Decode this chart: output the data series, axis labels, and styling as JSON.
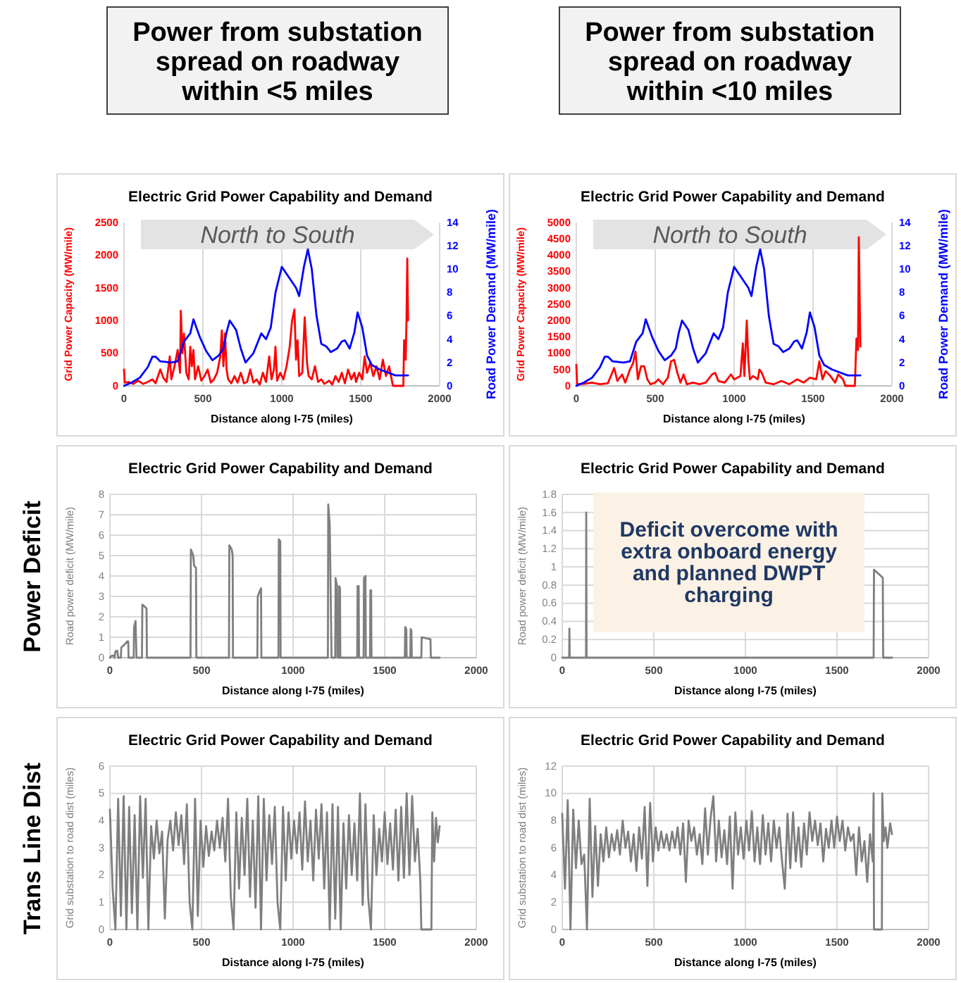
{
  "chart_data": [
    {
      "type": "line",
      "title": "Electric Grid Power Capability and Demand",
      "xlabel": "Distance along I-75 (miles)",
      "ylabel": "Grid Power Capacity (MW/mile)",
      "y2label": "Road Power Demand (MW/mile)",
      "xlim": [
        0,
        2000
      ],
      "xticks": [
        0,
        500,
        1000,
        1500,
        2000
      ],
      "ylim": [
        0,
        2500
      ],
      "yticks": [
        0,
        500,
        1000,
        1500,
        2000,
        2500
      ],
      "y2lim": [
        0,
        14
      ],
      "y2ticks": [
        0,
        2,
        4,
        6,
        8,
        10,
        12,
        14
      ],
      "grid": "x",
      "annotations": [
        "Power from substation spread on roadway within <5 miles",
        "North to South"
      ],
      "series": [
        {
          "color": "#ff0000",
          "x": [
            0,
            5,
            30,
            60,
            90,
            120,
            150,
            180,
            200,
            230,
            250,
            270,
            290,
            300,
            320,
            340,
            355,
            360,
            370,
            380,
            395,
            410,
            420,
            430,
            440,
            450,
            470,
            490,
            510,
            530,
            550,
            570,
            590,
            610,
            620,
            630,
            640,
            650,
            660,
            680,
            700,
            720,
            740,
            760,
            780,
            800,
            820,
            840,
            860,
            880,
            900,
            920,
            935,
            950,
            960,
            970,
            990,
            1010,
            1030,
            1050,
            1065,
            1080,
            1090,
            1100,
            1110,
            1130,
            1145,
            1160,
            1170,
            1190,
            1210,
            1230,
            1250,
            1270,
            1300,
            1320,
            1340,
            1360,
            1380,
            1400,
            1420,
            1440,
            1460,
            1470,
            1490,
            1510,
            1525,
            1540,
            1560,
            1580,
            1600,
            1620,
            1640,
            1660,
            1680,
            1700,
            1705,
            1770,
            1775,
            1785,
            1790,
            1795,
            1800
          ],
          "values": [
            250,
            50,
            60,
            30,
            80,
            30,
            60,
            100,
            40,
            250,
            120,
            60,
            450,
            100,
            300,
            550,
            200,
            1150,
            500,
            800,
            200,
            100,
            600,
            300,
            550,
            100,
            300,
            80,
            150,
            250,
            50,
            100,
            200,
            450,
            850,
            300,
            800,
            250,
            100,
            40,
            150,
            50,
            200,
            40,
            60,
            250,
            50,
            100,
            20,
            200,
            60,
            450,
            100,
            250,
            600,
            80,
            200,
            100,
            300,
            600,
            1000,
            1170,
            400,
            700,
            150,
            200,
            1050,
            350,
            150,
            100,
            300,
            60,
            100,
            30,
            80,
            20,
            150,
            60,
            200,
            40,
            250,
            100,
            200,
            60,
            200,
            100,
            450,
            200,
            350,
            150,
            300,
            100,
            400,
            150,
            300,
            50,
            0,
            0,
            700,
            400,
            1000,
            1950,
            1000
          ]
        },
        {
          "color": "#0000ff",
          "axis": "y2",
          "x": [
            0,
            50,
            100,
            150,
            180,
            200,
            230,
            300,
            340,
            380,
            420,
            440,
            480,
            520,
            560,
            600,
            630,
            650,
            670,
            710,
            740,
            770,
            820,
            870,
            900,
            930,
            960,
            1000,
            1050,
            1090,
            1110,
            1140,
            1165,
            1190,
            1220,
            1250,
            1280,
            1310,
            1350,
            1380,
            1400,
            1430,
            1460,
            1480,
            1510,
            1540,
            1570,
            1620,
            1680,
            1720,
            1800
          ],
          "values": [
            0,
            0.3,
            0.7,
            1.6,
            2.5,
            2.5,
            2.1,
            2.0,
            2.1,
            3.8,
            4.5,
            5.7,
            4.2,
            3.0,
            2.2,
            2.6,
            3.2,
            4.6,
            5.6,
            4.8,
            3.2,
            2.0,
            2.8,
            4.5,
            4.0,
            5.0,
            8.0,
            10.2,
            9.2,
            8.4,
            7.7,
            10.2,
            11.7,
            10.0,
            6.0,
            3.6,
            3.4,
            2.9,
            3.2,
            3.8,
            3.9,
            3.2,
            4.6,
            6.3,
            5.0,
            2.6,
            1.8,
            1.4,
            1.1,
            0.9,
            0.9
          ]
        }
      ]
    },
    {
      "type": "line",
      "title": "Electric Grid Power Capability and Demand",
      "xlabel": "Distance along I-75 (miles)",
      "ylabel": "Grid Power Capacity (MW/mile)",
      "y2label": "Road Power Demand (MW/mile)",
      "xlim": [
        0,
        2000
      ],
      "xticks": [
        0,
        500,
        1000,
        1500,
        2000
      ],
      "ylim": [
        0,
        5000
      ],
      "yticks": [
        0,
        500,
        1000,
        1500,
        2000,
        2500,
        3000,
        3500,
        4000,
        4500,
        5000
      ],
      "y2lim": [
        0,
        14
      ],
      "y2ticks": [
        0,
        2,
        4,
        6,
        8,
        10,
        12,
        14
      ],
      "grid": "x",
      "annotations": [
        "Power from substation spread on roadway within <10 miles",
        "North to South"
      ],
      "series": [
        {
          "color": "#ff0000",
          "x": [
            0,
            5,
            50,
            100,
            150,
            200,
            240,
            260,
            290,
            310,
            340,
            360,
            375,
            390,
            410,
            430,
            450,
            470,
            500,
            520,
            550,
            580,
            600,
            620,
            640,
            660,
            680,
            700,
            740,
            780,
            820,
            860,
            880,
            900,
            940,
            980,
            1000,
            1040,
            1055,
            1065,
            1080,
            1090,
            1100,
            1120,
            1150,
            1160,
            1175,
            1200,
            1250,
            1300,
            1350,
            1400,
            1440,
            1480,
            1520,
            1540,
            1560,
            1580,
            1610,
            1640,
            1660,
            1690,
            1705,
            1765,
            1775,
            1785,
            1790,
            1800
          ],
          "values": [
            650,
            50,
            60,
            100,
            50,
            80,
            550,
            150,
            350,
            100,
            500,
            700,
            1050,
            200,
            600,
            600,
            200,
            50,
            100,
            200,
            50,
            250,
            750,
            800,
            400,
            100,
            350,
            50,
            100,
            50,
            100,
            350,
            400,
            150,
            100,
            350,
            200,
            300,
            1300,
            300,
            2000,
            800,
            200,
            300,
            200,
            500,
            400,
            100,
            50,
            150,
            50,
            200,
            100,
            250,
            200,
            750,
            200,
            450,
            300,
            100,
            350,
            200,
            0,
            0,
            1450,
            1100,
            4550,
            1200
          ]
        },
        {
          "color": "#0000ff",
          "axis": "y2",
          "x": [
            0,
            50,
            100,
            150,
            180,
            200,
            230,
            300,
            340,
            380,
            420,
            440,
            480,
            520,
            560,
            600,
            630,
            650,
            670,
            710,
            740,
            770,
            820,
            870,
            900,
            930,
            960,
            1000,
            1050,
            1090,
            1110,
            1140,
            1165,
            1190,
            1220,
            1250,
            1280,
            1310,
            1350,
            1380,
            1400,
            1430,
            1460,
            1480,
            1510,
            1540,
            1570,
            1620,
            1680,
            1720,
            1800
          ],
          "values": [
            0,
            0.3,
            0.7,
            1.6,
            2.5,
            2.5,
            2.1,
            2.0,
            2.1,
            3.8,
            4.5,
            5.7,
            4.2,
            3.0,
            2.2,
            2.6,
            3.2,
            4.6,
            5.6,
            4.8,
            3.2,
            2.0,
            2.8,
            4.5,
            4.0,
            5.0,
            8.0,
            10.2,
            9.2,
            8.4,
            7.7,
            10.2,
            11.7,
            10.0,
            6.0,
            3.6,
            3.4,
            2.9,
            3.2,
            3.8,
            3.9,
            3.2,
            4.6,
            6.3,
            5.0,
            2.6,
            1.8,
            1.4,
            1.1,
            0.9,
            0.9
          ]
        }
      ]
    },
    {
      "type": "line",
      "title": "Electric Grid Power Capability and Demand",
      "xlabel": "Distance along I-75 (miles)",
      "ylabel": "Road power deficit (MW/mile)",
      "xlim": [
        0,
        2000
      ],
      "xticks": [
        0,
        500,
        1000,
        1500,
        2000
      ],
      "ylim": [
        0,
        8
      ],
      "yticks": [
        0,
        1,
        2,
        3,
        4,
        5,
        6,
        7,
        8
      ],
      "grid": true,
      "annotations": [
        "Power Deficit"
      ],
      "series": [
        {
          "color": "#7f7f7f",
          "x": [
            0,
            10,
            20,
            25,
            30,
            40,
            45,
            60,
            62,
            75,
            85,
            95,
            100,
            102,
            130,
            132,
            140,
            145,
            175,
            177,
            190,
            200,
            202,
            440,
            442,
            455,
            460,
            470,
            472,
            650,
            652,
            665,
            670,
            672,
            805,
            807,
            820,
            825,
            827,
            920,
            922,
            930,
            932,
            1190,
            1192,
            1200,
            1210,
            1230,
            1232,
            1240,
            1242,
            1250,
            1252,
            1256,
            1258,
            1350,
            1352,
            1358,
            1360,
            1385,
            1387,
            1395,
            1397,
            1420,
            1422,
            1426,
            1428,
            1610,
            1612,
            1618,
            1620,
            1640,
            1642,
            1646,
            1648,
            1700,
            1702,
            1750,
            1752,
            1800
          ],
          "values": [
            0,
            0.1,
            0.1,
            0,
            0.3,
            0.35,
            0,
            0,
            0.5,
            0.6,
            0.7,
            0.8,
            0.8,
            0,
            0,
            1.5,
            1.8,
            0,
            0,
            2.6,
            2.5,
            2.4,
            0,
            0,
            5.3,
            5.0,
            4.5,
            4.4,
            0,
            0,
            5.5,
            5.3,
            5.0,
            0,
            0,
            3.0,
            3.3,
            3.4,
            0,
            0,
            5.8,
            5.7,
            0,
            0,
            7.5,
            6.5,
            0,
            0,
            3.9,
            3.5,
            0,
            0,
            3.5,
            3.4,
            0,
            0,
            3.5,
            3.5,
            0,
            0,
            3.9,
            4.0,
            0,
            0,
            3.3,
            3.3,
            0,
            0,
            1.5,
            1.4,
            0,
            0,
            1.4,
            1.3,
            0,
            0,
            1.0,
            0.9,
            0,
            0
          ]
        }
      ]
    },
    {
      "type": "line",
      "title": "Electric Grid Power Capability and Demand",
      "xlabel": "Distance along I-75 (miles)",
      "ylabel": "Road power deficit (MW/mile)",
      "xlim": [
        0,
        2000
      ],
      "xticks": [
        0,
        500,
        1000,
        1500,
        2000
      ],
      "ylim": [
        0,
        1.8
      ],
      "yticks": [
        0,
        0.2,
        0.4,
        0.6,
        0.8,
        1,
        1.2,
        1.4,
        1.6,
        1.8
      ],
      "grid": true,
      "annotations": [
        "Deficit overcome with extra onboard energy and planned DWPT charging"
      ],
      "series": [
        {
          "color": "#7f7f7f",
          "x": [
            0,
            38,
            39,
            41,
            130,
            131,
            133,
            1700,
            1702,
            1740,
            1750,
            1752,
            1800
          ],
          "values": [
            0,
            0,
            0.32,
            0,
            0,
            1.6,
            0,
            0,
            0.97,
            0.9,
            0.88,
            0,
            0
          ]
        }
      ]
    },
    {
      "type": "line",
      "title": "Electric Grid Power Capability and Demand",
      "xlabel": "Distance along I-75 (miles)",
      "ylabel": "Grid substation to road dist (miles)",
      "xlim": [
        0,
        2000
      ],
      "xticks": [
        0,
        500,
        1000,
        1500,
        2000
      ],
      "ylim": [
        0,
        6
      ],
      "yticks": [
        0,
        1,
        2,
        3,
        4,
        5,
        6
      ],
      "grid": true,
      "annotations": [
        "Trans Line Dist"
      ],
      "series": [
        {
          "color": "#7f7f7f",
          "x": [
            0,
            15,
            30,
            45,
            60,
            75,
            90,
            105,
            120,
            135,
            150,
            165,
            180,
            195,
            210,
            225,
            240,
            255,
            270,
            285,
            300,
            315,
            330,
            345,
            360,
            375,
            390,
            405,
            420,
            435,
            450,
            465,
            480,
            495,
            510,
            525,
            540,
            555,
            570,
            585,
            600,
            615,
            630,
            645,
            660,
            675,
            690,
            705,
            720,
            735,
            750,
            765,
            780,
            795,
            810,
            825,
            840,
            855,
            870,
            885,
            900,
            915,
            930,
            945,
            960,
            975,
            990,
            1005,
            1020,
            1035,
            1050,
            1065,
            1080,
            1095,
            1110,
            1125,
            1140,
            1155,
            1170,
            1185,
            1200,
            1215,
            1230,
            1245,
            1260,
            1275,
            1290,
            1305,
            1320,
            1335,
            1350,
            1365,
            1380,
            1395,
            1410,
            1425,
            1440,
            1455,
            1470,
            1485,
            1500,
            1515,
            1530,
            1545,
            1560,
            1575,
            1590,
            1605,
            1620,
            1635,
            1650,
            1665,
            1680,
            1695,
            1700,
            1755,
            1760,
            1770,
            1780,
            1790,
            1800
          ],
          "values": [
            4.4,
            1.5,
            0,
            4.8,
            0.5,
            4.9,
            0,
            4.5,
            0.6,
            4.2,
            0,
            4.9,
            1.9,
            4.8,
            0,
            3.8,
            2.6,
            4.0,
            2.8,
            3.6,
            0.4,
            3.3,
            4.0,
            2.9,
            4.3,
            3.1,
            4.2,
            2.4,
            4.6,
            1.0,
            0,
            4.8,
            0.5,
            4.0,
            2.3,
            3.8,
            2.7,
            3.6,
            2.9,
            4.0,
            3.0,
            4.1,
            2.5,
            4.8,
            1.2,
            0,
            4.3,
            1.5,
            4.1,
            2.0,
            4.8,
            1.2,
            4.0,
            0.8,
            4.9,
            0,
            4.8,
            1.8,
            4.2,
            2.4,
            4.5,
            1.0,
            0,
            4.5,
            1.8,
            4.3,
            2.6,
            4.0,
            2.8,
            4.3,
            2.2,
            4.7,
            2.5,
            4.0,
            1.8,
            4.4,
            2.6,
            4.6,
            1.5,
            4.3,
            0,
            4.6,
            0.4,
            4.5,
            0,
            3.9,
            1.5,
            4.2,
            2.0,
            3.9,
            1.8,
            5.0,
            0.9,
            4.6,
            1.2,
            0,
            4.2,
            2.0,
            3.7,
            2.5,
            4.3,
            2.4,
            3.9,
            2.2,
            4.4,
            1.8,
            4.5,
            1.9,
            5.0,
            2.0,
            4.9,
            2.5,
            3.7,
            1.7,
            0,
            0,
            4.3,
            2.5,
            4.1,
            3.2,
            3.8
          ]
        }
      ]
    },
    {
      "type": "line",
      "title": "Electric Grid Power Capability and Demand",
      "xlabel": "Distance along I-75 (miles)",
      "ylabel": "Grid substation to road dist (miles)",
      "xlim": [
        0,
        2000
      ],
      "xticks": [
        0,
        500,
        1000,
        1500,
        2000
      ],
      "ylim": [
        0,
        12
      ],
      "yticks": [
        0,
        2,
        4,
        6,
        8,
        10,
        12
      ],
      "grid": true,
      "series": [
        {
          "color": "#7f7f7f",
          "x": [
            0,
            15,
            30,
            45,
            60,
            75,
            90,
            105,
            120,
            135,
            150,
            165,
            180,
            195,
            210,
            225,
            240,
            255,
            270,
            285,
            300,
            315,
            330,
            345,
            360,
            375,
            390,
            405,
            420,
            435,
            450,
            465,
            480,
            495,
            510,
            525,
            540,
            555,
            570,
            585,
            600,
            615,
            630,
            645,
            660,
            675,
            690,
            705,
            720,
            735,
            750,
            765,
            780,
            795,
            810,
            825,
            840,
            855,
            870,
            885,
            900,
            915,
            930,
            945,
            960,
            975,
            990,
            1005,
            1020,
            1035,
            1050,
            1065,
            1080,
            1095,
            1110,
            1125,
            1140,
            1155,
            1170,
            1185,
            1200,
            1215,
            1230,
            1245,
            1260,
            1275,
            1290,
            1305,
            1320,
            1335,
            1350,
            1365,
            1380,
            1395,
            1410,
            1425,
            1440,
            1455,
            1470,
            1485,
            1500,
            1515,
            1530,
            1545,
            1560,
            1575,
            1590,
            1605,
            1620,
            1635,
            1650,
            1665,
            1680,
            1695,
            1700,
            1702,
            1745,
            1747,
            1755,
            1765,
            1775,
            1790,
            1800
          ],
          "values": [
            8.5,
            3.0,
            9.5,
            0,
            8.8,
            4.5,
            8.0,
            4.8,
            5.5,
            0,
            9.6,
            2.4,
            7.6,
            3.2,
            7.0,
            5.0,
            7.5,
            5.3,
            7.0,
            5.8,
            7.3,
            5.5,
            8.0,
            6.0,
            7.2,
            5.0,
            7.0,
            4.3,
            7.5,
            5.2,
            9.0,
            3.2,
            9.3,
            5.0,
            7.5,
            5.8,
            7.2,
            6.0,
            7.0,
            5.8,
            7.2,
            6.0,
            7.5,
            5.5,
            7.8,
            3.5,
            8.0,
            6.5,
            7.5,
            5.5,
            7.0,
            4.8,
            8.9,
            5.5,
            8.2,
            9.8,
            5.0,
            8.0,
            5.3,
            7.3,
            4.8,
            8.3,
            3.0,
            8.6,
            5.5,
            7.5,
            5.2,
            8.0,
            5.8,
            8.7,
            5.0,
            7.5,
            4.8,
            8.4,
            5.5,
            7.8,
            5.0,
            8.0,
            6.0,
            7.5,
            5.0,
            3.0,
            8.5,
            4.5,
            8.6,
            5.0,
            7.5,
            4.6,
            7.8,
            5.5,
            8.6,
            6.5,
            8.0,
            6.2,
            7.8,
            5.0,
            7.4,
            6.0,
            8.0,
            6.0,
            8.3,
            6.5,
            8.0,
            5.8,
            7.5,
            6.5,
            7.0,
            4.0,
            7.5,
            5.0,
            6.5,
            3.5,
            7.0,
            5.0,
            10,
            0,
            0,
            10,
            6.5,
            7.5,
            6.0,
            7.8,
            7.0
          ]
        }
      ]
    }
  ]
}
